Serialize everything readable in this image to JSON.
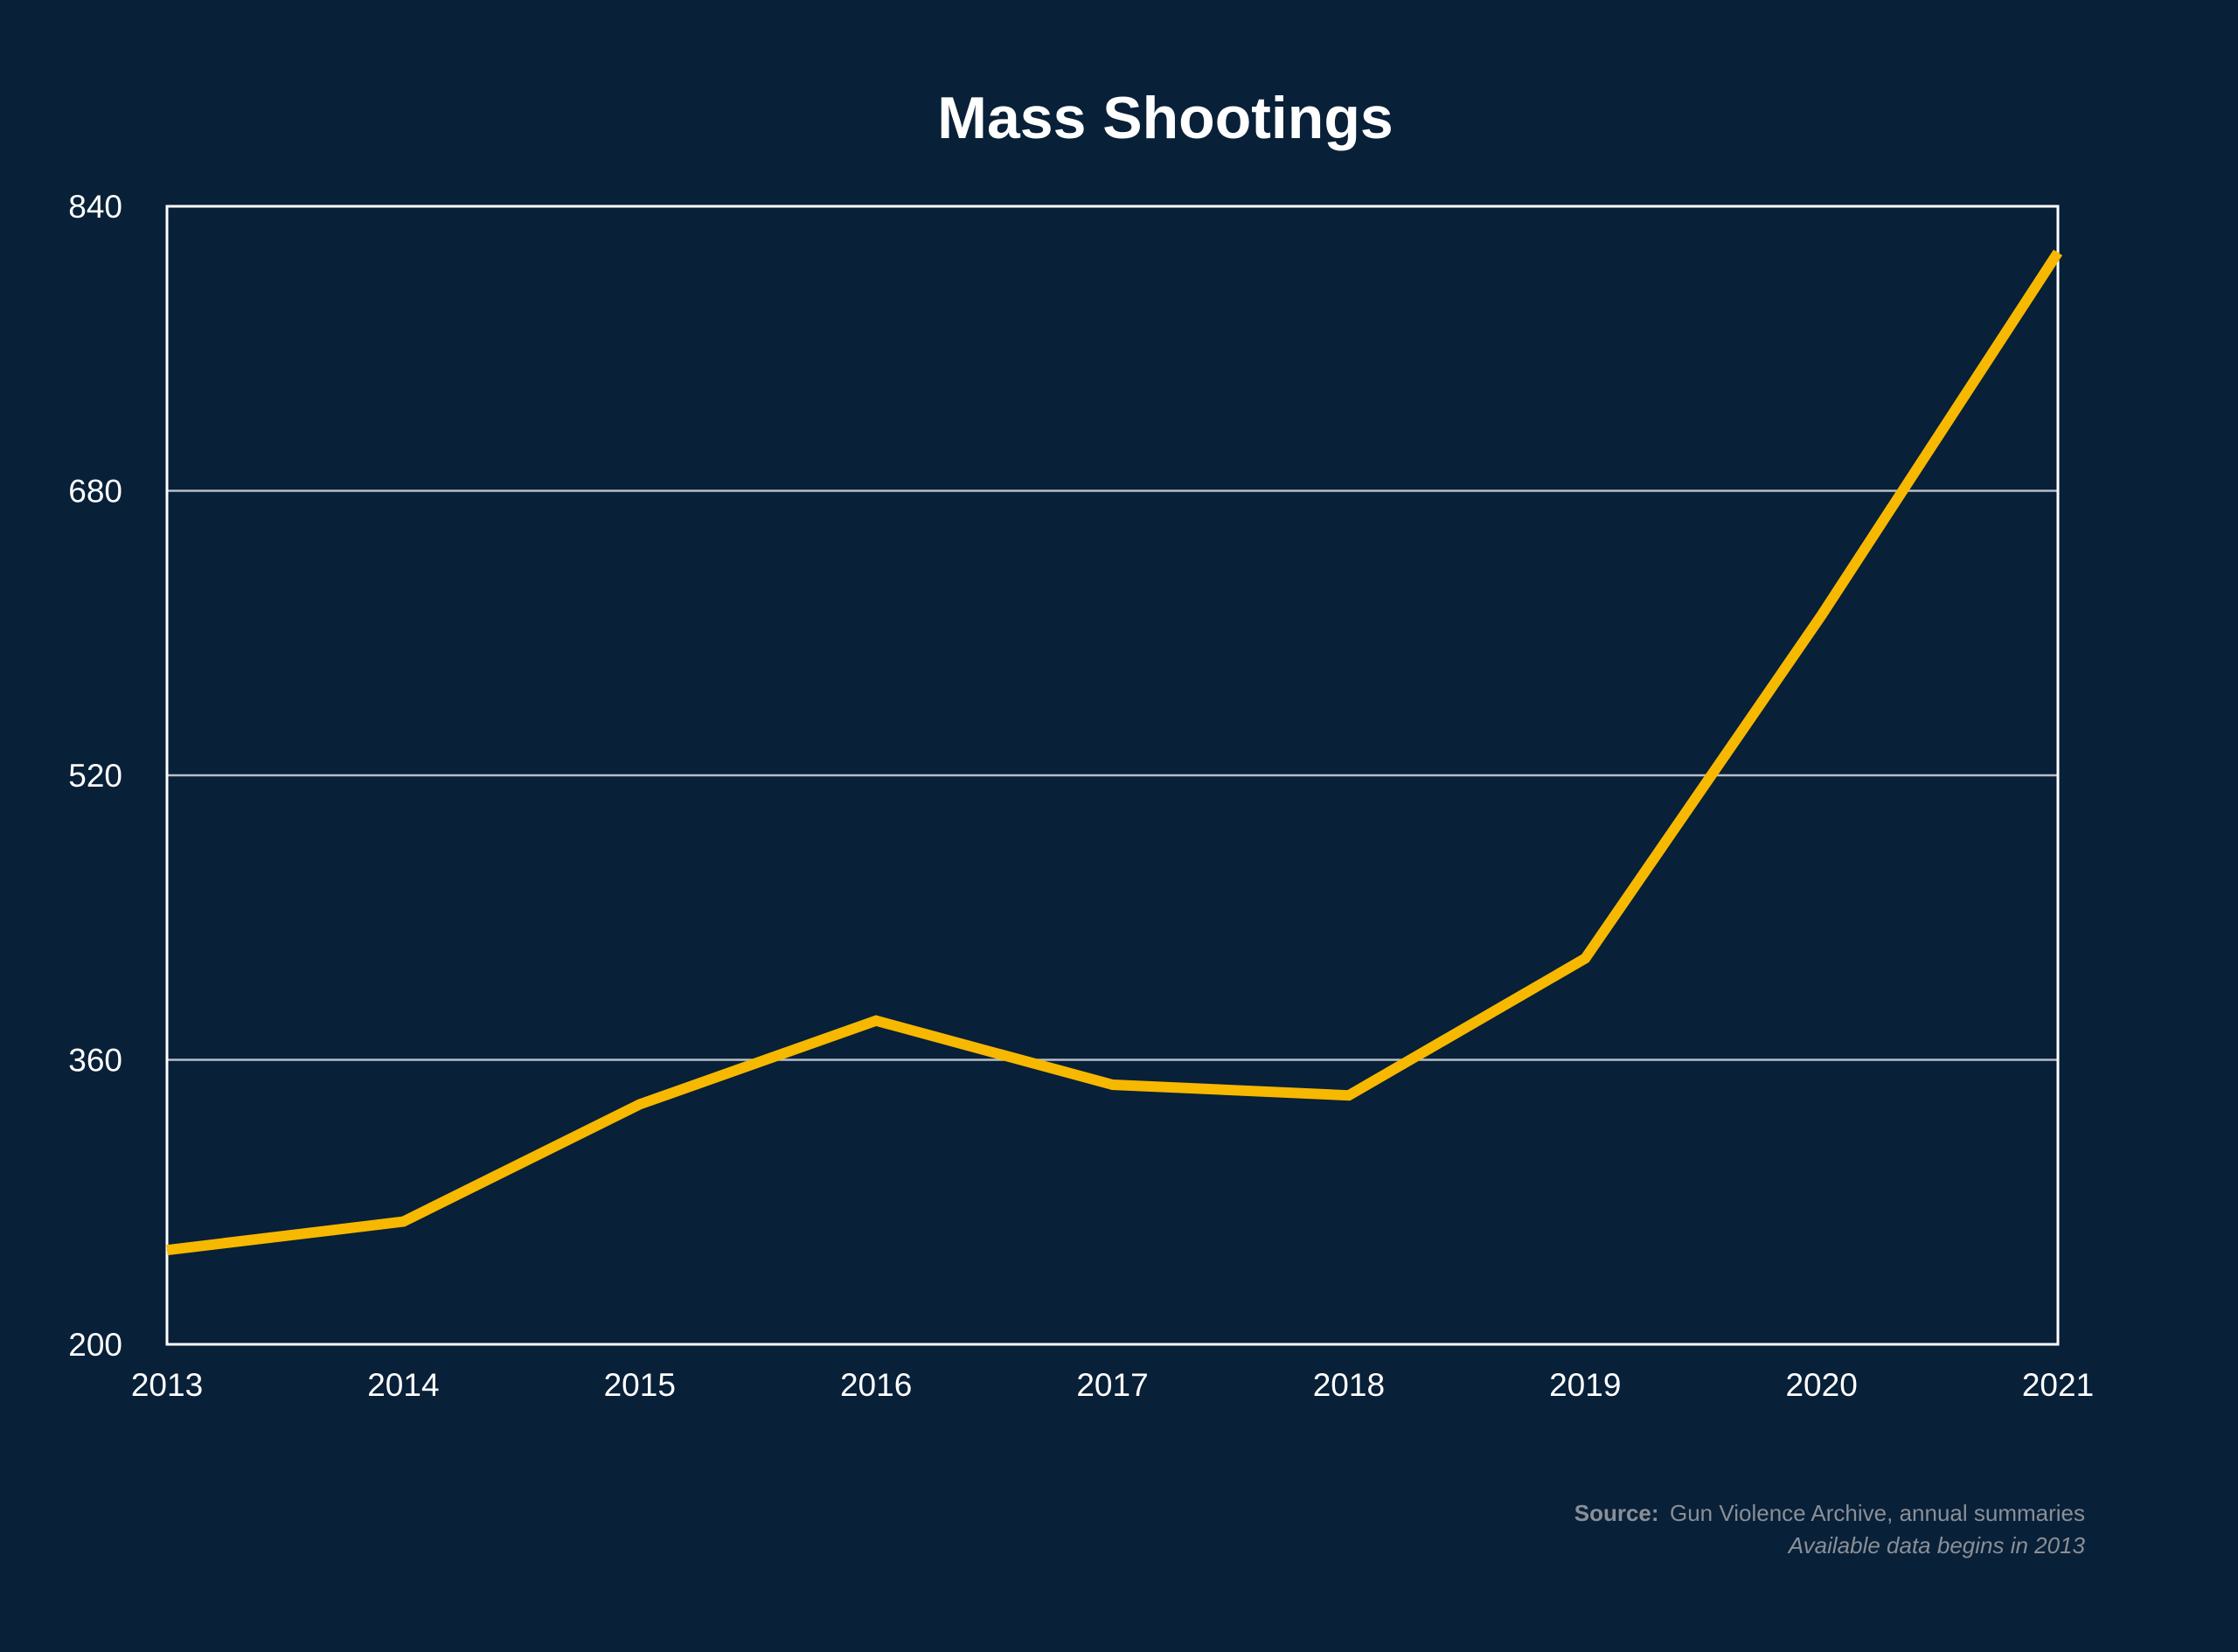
{
  "chart_data": {
    "type": "line",
    "title": "Mass Shootings",
    "x": [
      "2013",
      "2014",
      "2015",
      "2016",
      "2017",
      "2018",
      "2019",
      "2020",
      "2021"
    ],
    "series": [
      {
        "values": [
          253,
          269,
          335,
          382,
          346,
          340,
          417,
          610,
          814
        ]
      }
    ],
    "ylim": [
      200,
      840
    ],
    "yticks": [
      "200",
      "360",
      "520",
      "680",
      "840"
    ],
    "grid": true,
    "legend": "none"
  },
  "source": {
    "label": "Source:",
    "text": "Gun Violence Archive, annual summaries",
    "note": "Available data begins in 2013"
  },
  "colors": {
    "background": "#082038",
    "line": "#f7b800",
    "grid": "#b8bec8",
    "frame": "#ffffff",
    "text": "#ffffff",
    "muted": "#8a8f97"
  }
}
